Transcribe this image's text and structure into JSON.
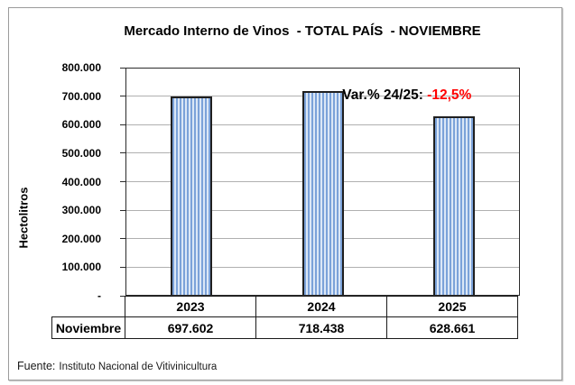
{
  "title": "Mercado Interno de Vinos  - TOTAL PAÍS  - NOVIEMBRE",
  "annotation": {
    "label": "Var.% 24/25: ",
    "value": "-12,5%"
  },
  "y_axis": {
    "label": "Hectolitros",
    "ticks": [
      "800.000",
      "700.000",
      "600.000",
      "500.000",
      "400.000",
      "300.000",
      "200.000",
      "100.000",
      "-"
    ]
  },
  "chart_data": {
    "type": "bar",
    "title": "Mercado Interno de Vinos - TOTAL PAÍS - NOVIEMBRE",
    "categories": [
      "2023",
      "2024",
      "2025"
    ],
    "values": [
      697602,
      718438,
      628661
    ],
    "value_labels": [
      "697.602",
      "718.438",
      "628.661"
    ],
    "xlabel": "",
    "ylabel": "Hectolitros",
    "ylim": [
      0,
      800000
    ],
    "ytick_step": 100000,
    "grid": true,
    "legend": false,
    "annotation": "Var.% 24/25: -12,5%",
    "bar_style": {
      "stripe_color": "#7BA2D9",
      "stripe_background": "#DBE7F6",
      "border_color": "#1F1F1F"
    }
  },
  "table": {
    "row_label": "Noviembre",
    "columns": [
      "2023",
      "2024",
      "2025"
    ],
    "values": [
      "697.602",
      "718.438",
      "628.661"
    ]
  },
  "source": {
    "prefix": "Fuente:",
    "text": "Instituto Nacional de Vitivinicultura"
  },
  "colors": {
    "annotation_value": "#FF0000",
    "gridline": "#B0B0B0",
    "axis": "#2B2B2B",
    "frame_border": "#9B9B9B",
    "text": "#000000"
  }
}
